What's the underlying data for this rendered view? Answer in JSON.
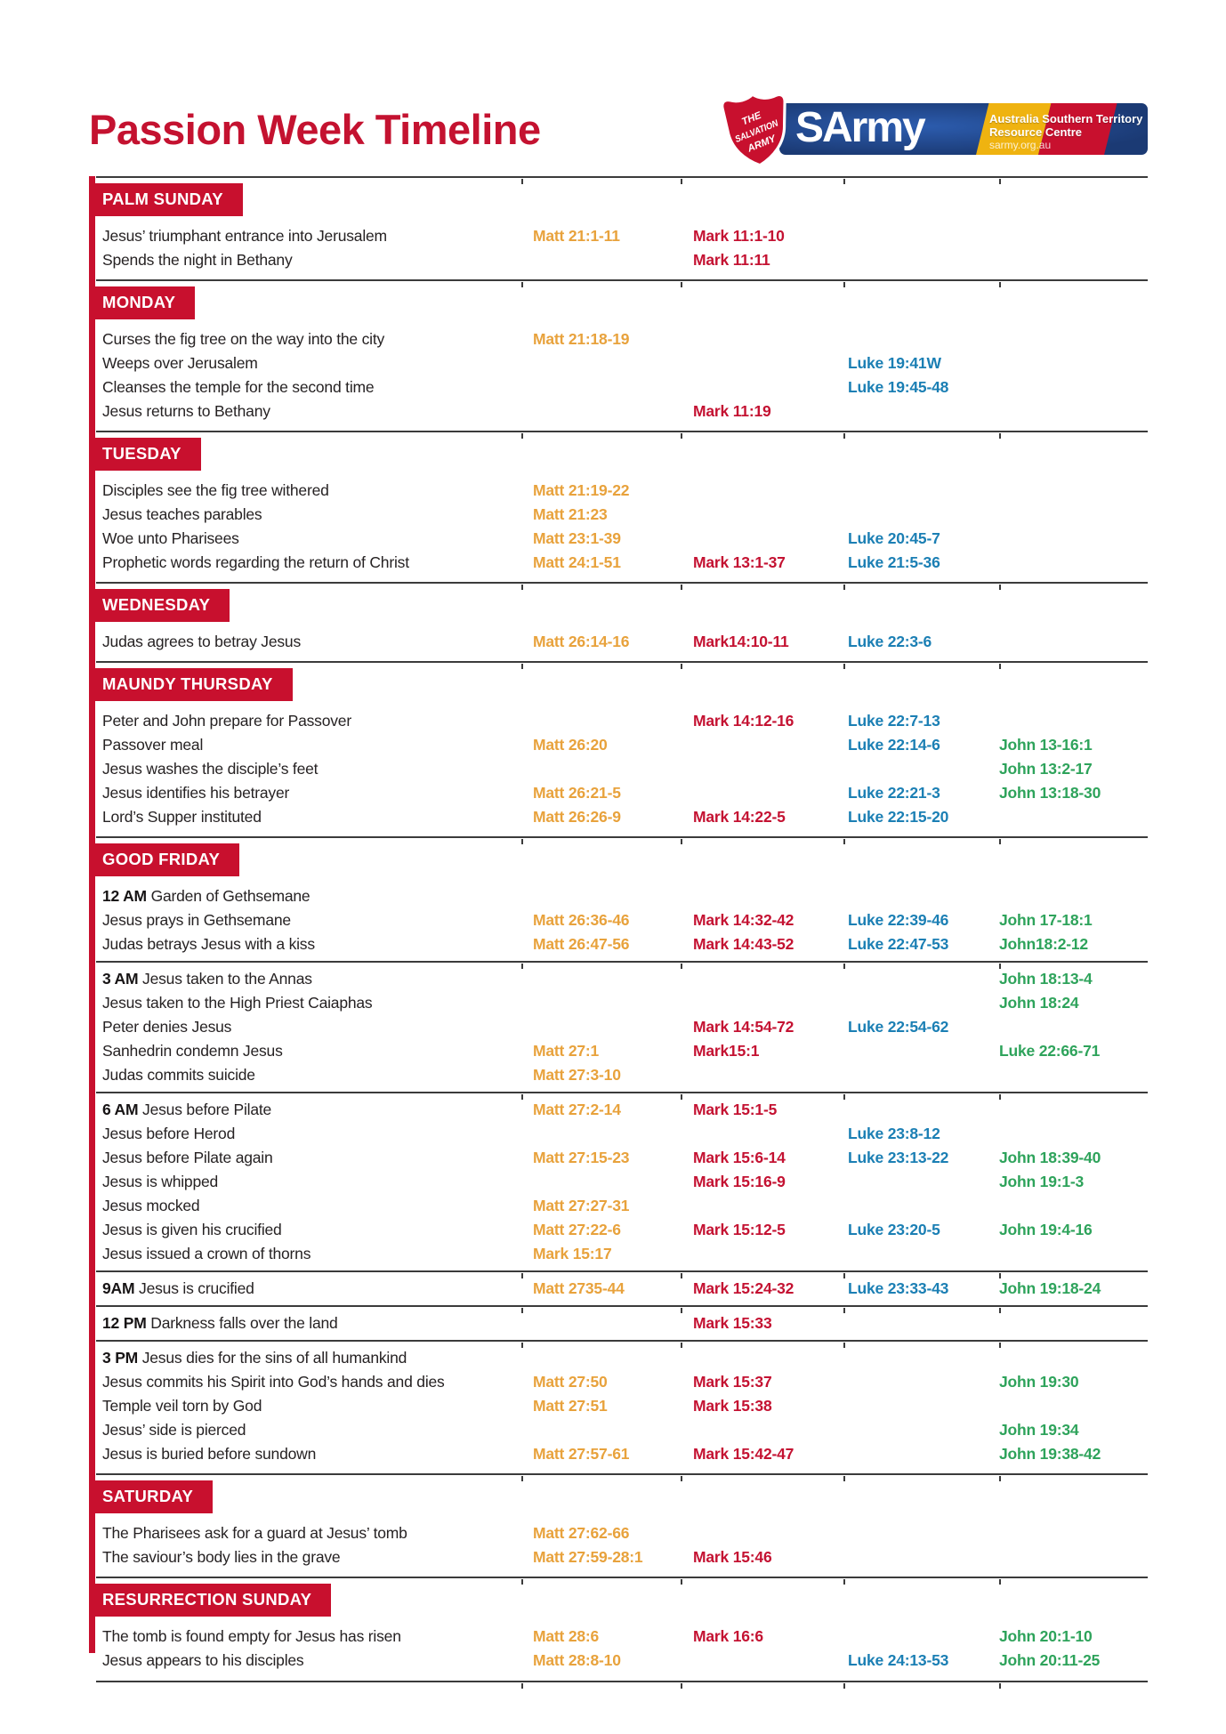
{
  "page": {
    "title": "Passion Week Timeline"
  },
  "logo": {
    "shield_lines": [
      "THE",
      "SALVATION",
      "ARMY"
    ],
    "brand": "SArmy",
    "territory_line1": "Australia Southern Territory",
    "territory_line2": "Resource Centre",
    "territory_line3": "sarmy.org.au"
  },
  "colors": {
    "title": "#c41230",
    "day_header_bg": "#c8102e",
    "left_bar": "#c8102e",
    "matt_ref": "#e8a23c",
    "mark_ref": "#c41232",
    "luke_ref": "#1b7fb4",
    "john_ref": "#2ea35b",
    "body_text": "#262223",
    "divider": "#3b3b3b",
    "logo_blue": "#1b3a74",
    "logo_yellow": "#efb310",
    "logo_red": "#c8102e"
  },
  "sections": [
    {
      "day": "PALM SUNDAY",
      "blocks": [
        {
          "rows": [
            {
              "event": "Jesus’ triumphant entrance into Jerusalem",
              "matt": "Matt 21:1-11",
              "mark": "Mark 11:1-10"
            },
            {
              "event": "Spends the night in Bethany",
              "mark": "Mark 11:11"
            }
          ]
        }
      ]
    },
    {
      "day": "MONDAY",
      "blocks": [
        {
          "rows": [
            {
              "event": "Curses the fig tree on the way into the city",
              "matt": "Matt 21:18-19"
            },
            {
              "event": "Weeps over Jerusalem",
              "luke": "Luke 19:41W"
            },
            {
              "event": "Cleanses the temple for the second time",
              "luke": "Luke 19:45-48"
            },
            {
              "event": "Jesus returns to Bethany",
              "mark": "Mark 11:19"
            }
          ]
        }
      ]
    },
    {
      "day": "TUESDAY",
      "blocks": [
        {
          "rows": [
            {
              "event": "Disciples see the fig tree withered",
              "matt": "Matt 21:19-22"
            },
            {
              "event": "Jesus teaches parables",
              "matt": "Matt 21:23"
            },
            {
              "event": "Woe unto Pharisees",
              "matt": "Matt 23:1-39",
              "luke": "Luke 20:45-7"
            },
            {
              "event": "Prophetic words regarding the return of Christ",
              "matt": "Matt 24:1-51",
              "mark": "Mark 13:1-37",
              "luke": "Luke 21:5-36"
            }
          ]
        }
      ]
    },
    {
      "day": "WEDNESDAY",
      "blocks": [
        {
          "rows": [
            {
              "event": "Judas agrees to betray Jesus",
              "matt": "Matt 26:14-16",
              "mark": "Mark14:10-11",
              "luke": "Luke 22:3-6"
            }
          ]
        }
      ]
    },
    {
      "day": "MAUNDY THURSDAY",
      "blocks": [
        {
          "rows": [
            {
              "event": "Peter and John prepare for Passover",
              "mark": "Mark 14:12-16",
              "luke": "Luke 22:7-13"
            },
            {
              "event": "Passover meal",
              "matt": "Matt 26:20",
              "luke": "Luke 22:14-6",
              "john": "John 13-16:1"
            },
            {
              "event": "Jesus washes the disciple’s feet",
              "john": "John 13:2-17"
            },
            {
              "event": "Jesus identifies his betrayer",
              "matt": "Matt 26:21-5",
              "luke": "Luke 22:21-3",
              "john": "John 13:18-30"
            },
            {
              "event": "Lord’s Supper instituted",
              "matt": "Matt 26:26-9",
              "mark": "Mark 14:22-5",
              "luke": "Luke 22:15-20"
            }
          ]
        }
      ]
    },
    {
      "day": "GOOD FRIDAY",
      "blocks": [
        {
          "rows": [
            {
              "time": "12 AM",
              "event": "Garden of Gethsemane"
            },
            {
              "event": "Jesus prays in Gethsemane",
              "matt": "Matt 26:36-46",
              "mark": "Mark 14:32-42",
              "luke": "Luke 22:39-46",
              "john": "John 17-18:1"
            },
            {
              "event": "Judas betrays Jesus with a kiss",
              "matt": "Matt 26:47-56",
              "mark": "Mark 14:43-52",
              "luke": "Luke 22:47-53",
              "john": "John18:2-12"
            }
          ]
        },
        {
          "rows": [
            {
              "time": "3 AM",
              "event": "Jesus taken to the Annas",
              "john": "John 18:13-4"
            },
            {
              "event": "Jesus taken to the High Priest Caiaphas",
              "john": "John 18:24"
            },
            {
              "event": "Peter denies Jesus",
              "mark": "Mark 14:54-72",
              "luke": "Luke 22:54-62"
            },
            {
              "event": "Sanhedrin condemn Jesus",
              "matt": "Matt 27:1",
              "mark": "Mark15:1",
              "john": "Luke 22:66-71"
            },
            {
              "event": "Judas commits suicide",
              "matt": "Matt 27:3-10"
            }
          ]
        },
        {
          "rows": [
            {
              "time": "6 AM",
              "event": "Jesus before Pilate",
              "matt": "Matt 27:2-14",
              "mark": "Mark 15:1-5"
            },
            {
              "event": "Jesus before Herod",
              "luke": "Luke 23:8-12"
            },
            {
              "event": "Jesus before Pilate again",
              "matt": "Matt 27:15-23",
              "mark": "Mark 15:6-14",
              "luke": "Luke 23:13-22",
              "john": "John 18:39-40"
            },
            {
              "event": "Jesus is whipped",
              "mark": "Mark 15:16-9",
              "john": "John 19:1-3"
            },
            {
              "event": "Jesus mocked",
              "matt": "Matt 27:27-31"
            },
            {
              "event": "Jesus is given his crucified",
              "matt": "Matt 27:22-6",
              "mark": "Mark 15:12-5",
              "luke": "Luke 23:20-5",
              "john": "John 19:4-16"
            },
            {
              "event": "Jesus issued a crown of thorns",
              "matt": "Mark 15:17"
            }
          ]
        },
        {
          "rows": [
            {
              "time": "9AM",
              "event": "Jesus is crucified",
              "matt": "Matt 2735-44",
              "mark": "Mark 15:24-32",
              "luke": "Luke 23:33-43",
              "john": "John 19:18-24"
            }
          ]
        },
        {
          "rows": [
            {
              "time": "12 PM",
              "event": "Darkness falls over the land",
              "mark": "Mark 15:33"
            }
          ]
        },
        {
          "rows": [
            {
              "time": "3 PM",
              "event": "Jesus dies for the sins of all humankind"
            },
            {
              "event": "Jesus commits his Spirit into God’s hands and dies",
              "matt": "Matt 27:50",
              "mark": "Mark 15:37",
              "john": "John 19:30"
            },
            {
              "event": "Temple veil torn by God",
              "matt": "Matt 27:51",
              "mark": "Mark 15:38"
            },
            {
              "event": "Jesus’ side is pierced",
              "john": "John 19:34"
            },
            {
              "event": "Jesus is buried before sundown",
              "matt": "Matt 27:57-61",
              "mark": "Mark 15:42-47",
              "john": "John 19:38-42"
            }
          ]
        }
      ]
    },
    {
      "day": "SATURDAY",
      "blocks": [
        {
          "rows": [
            {
              "event": "The Pharisees ask for a guard at Jesus’ tomb",
              "matt": "Matt 27:62-66"
            },
            {
              "event": "The saviour’s body lies in the grave",
              "matt": "Matt 27:59-28:1",
              "mark": "Mark 15:46"
            }
          ]
        }
      ]
    },
    {
      "day": "RESURRECTION SUNDAY",
      "blocks": [
        {
          "rows": [
            {
              "event": "The tomb is found empty for Jesus has risen",
              "matt": "Matt 28:6",
              "mark": "Mark 16:6",
              "john": "John 20:1-10"
            },
            {
              "event": "Jesus appears to his disciples",
              "matt": "Matt 28:8-10",
              "luke": "Luke 24:13-53",
              "john": "John 20:11-25"
            }
          ]
        }
      ]
    }
  ]
}
